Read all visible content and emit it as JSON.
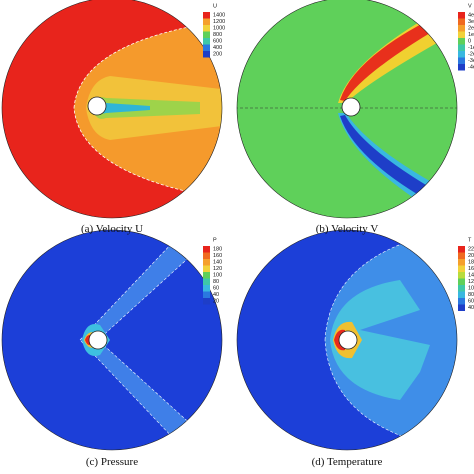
{
  "panels": [
    {
      "caption": "(a)   Velocity U",
      "legend": {
        "title": "U",
        "labels": [
          "1400",
          "1200",
          "1000",
          "800",
          "600",
          "400",
          "200"
        ]
      }
    },
    {
      "caption": "(b)   Velocity V",
      "legend": {
        "title": "V",
        "labels": [
          "4e",
          "3e",
          "2e",
          "1e",
          "0",
          "-1e",
          "-2e",
          "-3e",
          "-4e"
        ]
      }
    },
    {
      "caption": "(c)   Pressure",
      "legend": {
        "title": "P",
        "labels": [
          "180",
          "160",
          "140",
          "120",
          "100",
          "80",
          "60",
          "40",
          "20"
        ]
      }
    },
    {
      "caption": "(d)   Temperature",
      "legend": {
        "title": "T",
        "labels": [
          "22",
          "20",
          "18",
          "16",
          "14",
          "12",
          "10",
          "80",
          "60",
          "40"
        ]
      }
    }
  ]
}
